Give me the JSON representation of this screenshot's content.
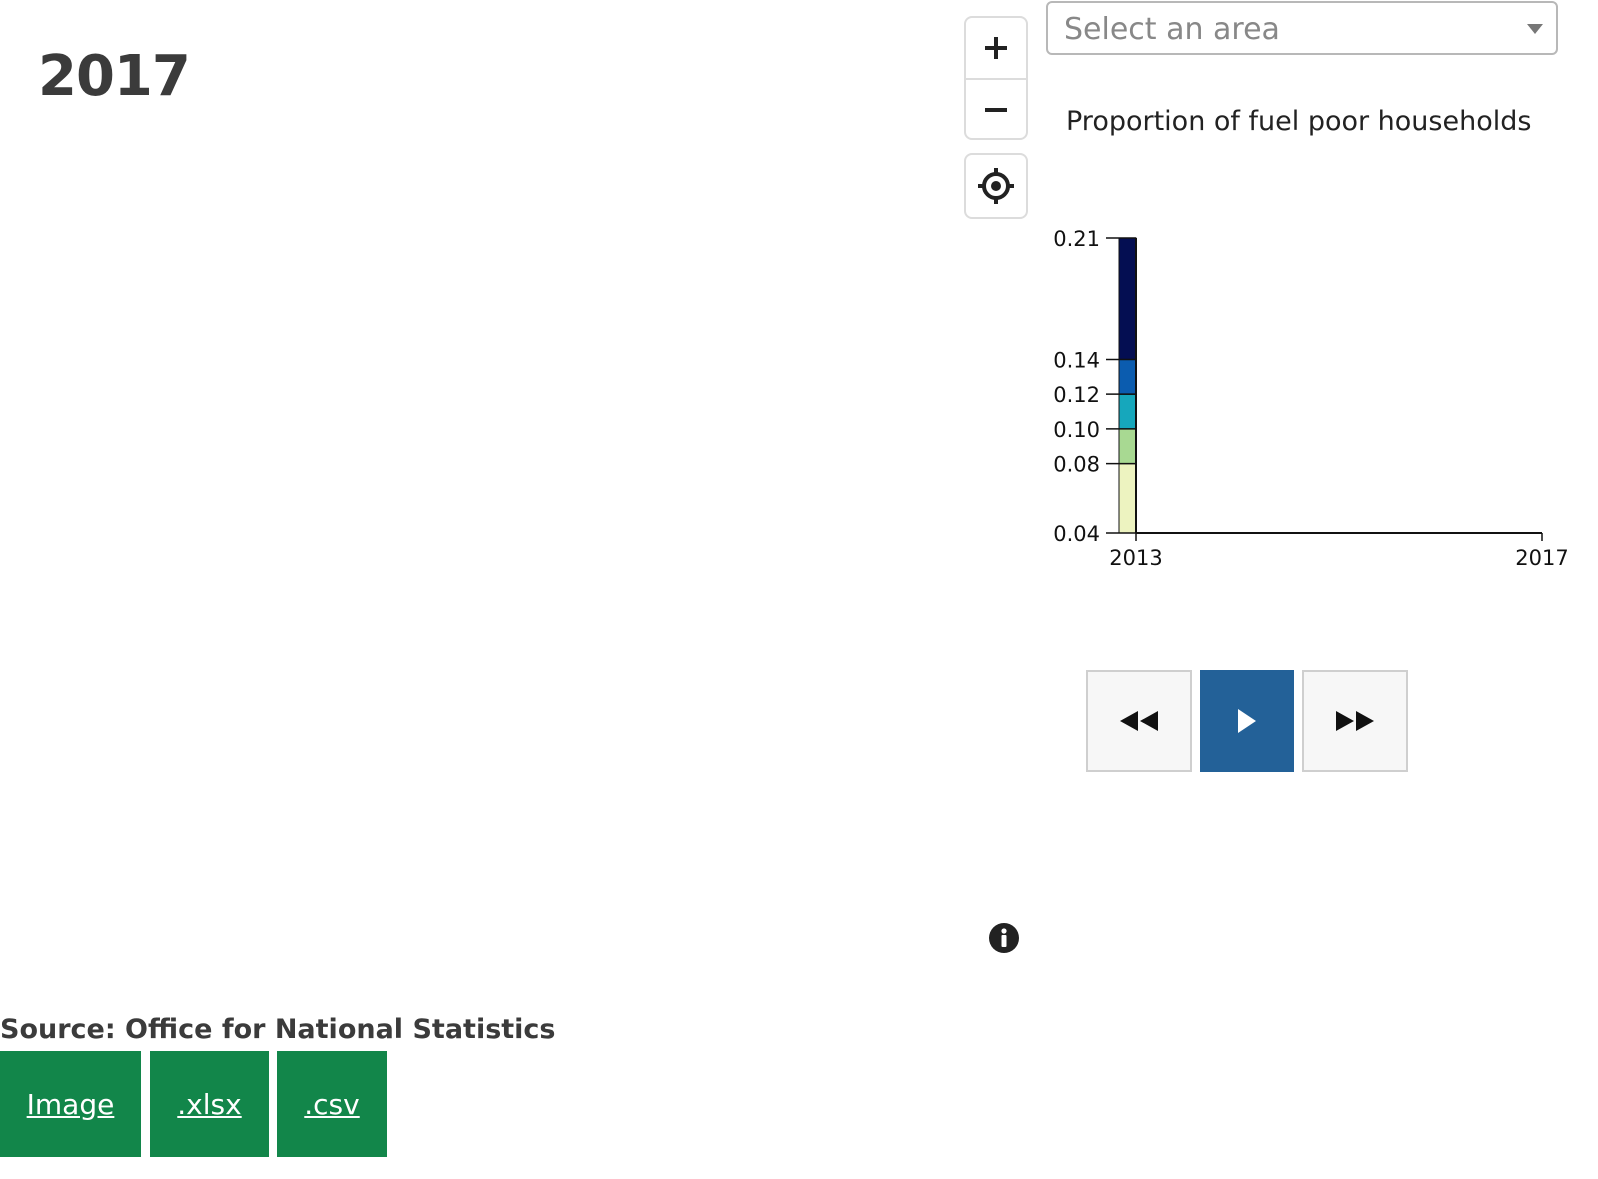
{
  "header": {
    "year": "2017"
  },
  "map_controls": {
    "zoom_in_icon": "plus-icon",
    "zoom_out_icon": "minus-icon",
    "locate_icon": "crosshair-icon"
  },
  "area_select": {
    "placeholder": "Select an area"
  },
  "chart_title": "Proportion of fuel poor households",
  "chart_data": {
    "type": "bar",
    "title": "Proportion of fuel poor households",
    "xlabel": "",
    "ylabel": "",
    "x_ticks": [
      "2013",
      "2017"
    ],
    "xlim": [
      2013,
      2017
    ],
    "y_ticks": [
      0.04,
      0.08,
      0.1,
      0.12,
      0.14,
      0.21
    ],
    "y_tick_labels": [
      "0.04",
      "0.08",
      "0.10",
      "0.12",
      "0.14",
      "0.21"
    ],
    "ylim": [
      0.04,
      0.21
    ],
    "legend_bands": [
      {
        "from": 0.04,
        "to": 0.08,
        "color": "#edf3c0"
      },
      {
        "from": 0.08,
        "to": 0.1,
        "color": "#a8d992"
      },
      {
        "from": 0.1,
        "to": 0.12,
        "color": "#16a7bc"
      },
      {
        "from": 0.12,
        "to": 0.14,
        "color": "#0b5caf"
      },
      {
        "from": 0.14,
        "to": 0.21,
        "color": "#040e52"
      }
    ],
    "grid": false
  },
  "player": {
    "rewind_icon": "rewind-icon",
    "play_icon": "play-icon",
    "forward_icon": "fast-forward-icon",
    "play_color": "#236198"
  },
  "info_icon": "info-icon",
  "source": "Source: Office for National Statistics",
  "downloads": [
    {
      "label": "Image"
    },
    {
      "label": ".xlsx"
    },
    {
      "label": ".csv"
    }
  ],
  "colors": {
    "download_green": "#12864a",
    "title_text": "#3b3b3b"
  }
}
